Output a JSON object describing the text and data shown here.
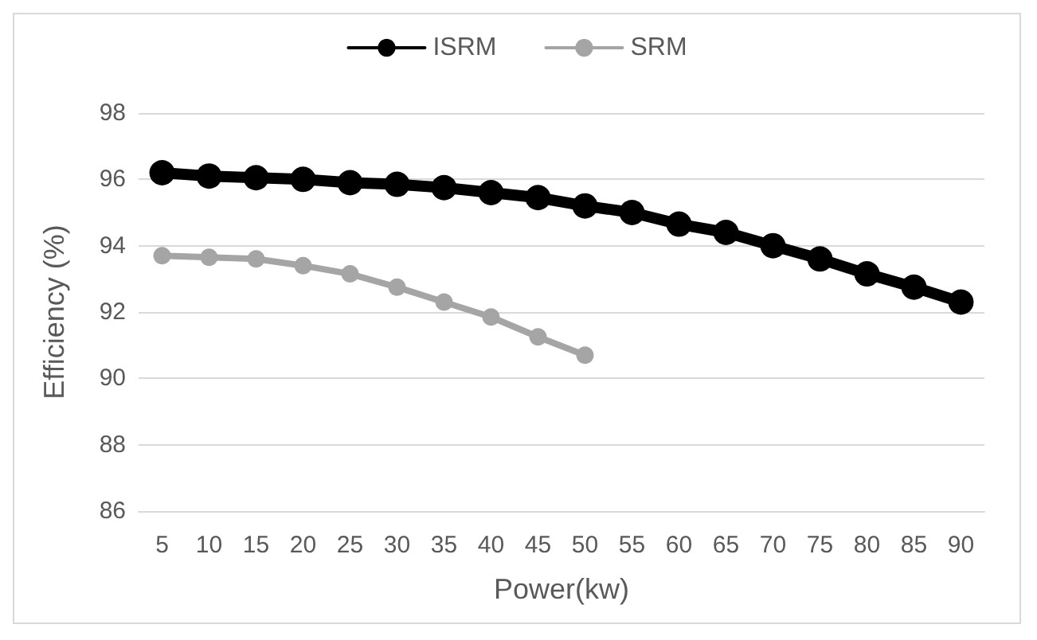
{
  "chart_data": {
    "type": "line",
    "xlabel": "Power(kw)",
    "ylabel": "Efficiency (%)",
    "categories": [
      "5",
      "10",
      "15",
      "20",
      "25",
      "30",
      "35",
      "40",
      "45",
      "50",
      "55",
      "60",
      "65",
      "70",
      "75",
      "80",
      "85",
      "90"
    ],
    "series": [
      {
        "name": "ISRM",
        "color": "#000000",
        "values": [
          96.2,
          96.1,
          96.05,
          96.0,
          95.9,
          95.85,
          95.75,
          95.6,
          95.45,
          95.2,
          95.0,
          94.65,
          94.4,
          94.0,
          93.6,
          93.15,
          92.75,
          92.3
        ]
      },
      {
        "name": "SRM",
        "color": "#a5a5a5",
        "values": [
          93.7,
          93.65,
          93.6,
          93.4,
          93.15,
          92.75,
          92.3,
          91.85,
          91.25,
          90.7,
          null,
          null,
          null,
          null,
          null,
          null,
          null,
          null
        ]
      }
    ],
    "ylim": [
      86,
      98
    ],
    "yticks": [
      86,
      88,
      90,
      92,
      94,
      96,
      98
    ],
    "grid": "y",
    "legend": "top",
    "marker": "circle",
    "line_style": "solid"
  }
}
